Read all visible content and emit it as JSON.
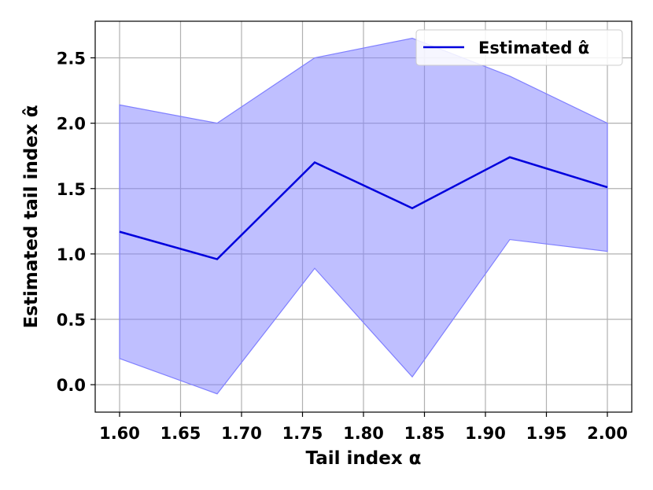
{
  "chart_data": {
    "type": "line",
    "xlabel": "Tail index α",
    "ylabel": "Estimated tail index α̂",
    "xlim": [
      1.58,
      2.02
    ],
    "ylim": [
      -0.21,
      2.78
    ],
    "grid": true,
    "legend_position": "top-right",
    "x_ticks": [
      1.6,
      1.65,
      1.7,
      1.75,
      1.8,
      1.85,
      1.9,
      1.95,
      2.0
    ],
    "x_tick_labels": [
      "1.60",
      "1.65",
      "1.70",
      "1.75",
      "1.80",
      "1.85",
      "1.90",
      "1.95",
      "2.00"
    ],
    "y_ticks": [
      0.0,
      0.5,
      1.0,
      1.5,
      2.0,
      2.5
    ],
    "y_tick_labels": [
      "0.0",
      "0.5",
      "1.0",
      "1.5",
      "2.0",
      "2.5"
    ],
    "x": [
      1.6,
      1.68,
      1.76,
      1.84,
      1.92,
      2.0
    ],
    "series": [
      {
        "name": "Estimated α̂",
        "values": [
          1.17,
          0.96,
          1.7,
          1.35,
          1.74,
          1.51
        ],
        "color": "#0000dd"
      }
    ],
    "band": {
      "lower": [
        0.2,
        -0.07,
        0.89,
        0.06,
        1.11,
        1.02
      ],
      "upper": [
        2.14,
        2.0,
        2.5,
        2.65,
        2.36,
        2.0
      ],
      "color": "#8080ff"
    }
  }
}
